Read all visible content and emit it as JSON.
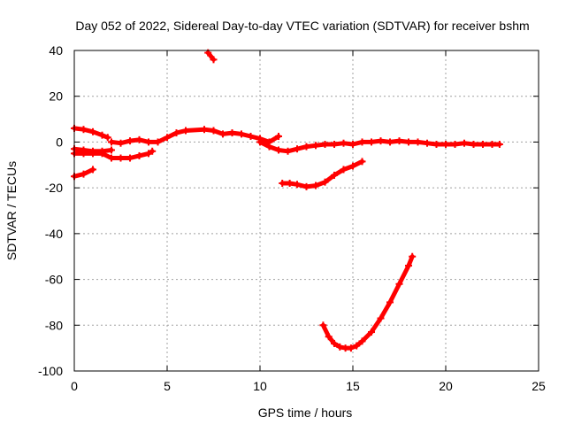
{
  "chart_data": {
    "type": "scatter",
    "title": "Day 052 of 2022, Sidereal Day-to-day VTEC variation (SDTVAR) for receiver bshm",
    "xlabel": "GPS time / hours",
    "ylabel": "SDTVAR / TECUs",
    "xlim": [
      0,
      25
    ],
    "ylim": [
      -100,
      40
    ],
    "xticks": [
      0,
      5,
      10,
      15,
      20,
      25
    ],
    "yticks": [
      -100,
      -80,
      -60,
      -40,
      -20,
      0,
      20,
      40
    ],
    "grid": true,
    "color": "#ff0000",
    "series": [
      {
        "name": "track-1",
        "x": [
          7.2,
          7.5
        ],
        "y": [
          39,
          36
        ]
      },
      {
        "name": "track-2",
        "x": [
          0,
          0.5,
          1.0,
          1.5,
          1.8
        ],
        "y": [
          6,
          5.5,
          4.5,
          3,
          2
        ]
      },
      {
        "name": "track-3",
        "x": [
          2.0,
          2.5,
          3.0,
          3.5,
          4.0,
          4.5,
          5.0,
          5.5,
          6.0,
          7.0,
          7.5,
          8.0,
          8.5,
          9.0,
          9.5,
          10.0,
          10.5,
          11.0
        ],
        "y": [
          0,
          -0.5,
          0.5,
          1,
          0,
          0,
          2,
          4,
          5,
          5.5,
          5,
          3.5,
          4,
          3.5,
          2.5,
          1.5,
          0,
          2.5
        ]
      },
      {
        "name": "track-4",
        "x": [
          10.0,
          10.5,
          11.0,
          11.5,
          12.0,
          12.5,
          13.0,
          13.5,
          14.0,
          14.5,
          15.0,
          15.5,
          16.0,
          16.5,
          17.0,
          17.5,
          18.0,
          18.5,
          19.0,
          19.5,
          20.0,
          20.5,
          21.0,
          21.5,
          22.0,
          22.5,
          22.9
        ],
        "y": [
          0,
          -2,
          -3.5,
          -4,
          -3,
          -2,
          -1.5,
          -1,
          -1,
          -0.5,
          -1,
          0,
          0,
          0.5,
          0,
          0.5,
          0,
          0,
          -0.5,
          -1,
          -1,
          -1,
          -0.5,
          -1,
          -1,
          -1,
          -1
        ]
      },
      {
        "name": "track-5",
        "x": [
          0,
          0.5,
          1.0,
          1.5,
          2.0,
          2.5,
          3.0,
          3.5,
          4.0,
          4.2
        ],
        "y": [
          -5,
          -5,
          -5,
          -5,
          -7,
          -7,
          -7,
          -6,
          -5,
          -4
        ]
      },
      {
        "name": "track-6",
        "x": [
          0,
          0.5,
          1.0,
          1.5,
          2.0
        ],
        "y": [
          -3,
          -3.5,
          -4,
          -4,
          -3.5
        ]
      },
      {
        "name": "track-7",
        "x": [
          0,
          0.5,
          1.0
        ],
        "y": [
          -15,
          -14,
          -12
        ]
      },
      {
        "name": "track-8",
        "x": [
          11.2,
          11.6,
          12.0,
          12.5,
          13.0,
          13.5,
          14.0,
          14.5,
          15.0,
          15.5
        ],
        "y": [
          -18,
          -18,
          -18.5,
          -19.5,
          -19,
          -17.5,
          -14.5,
          -12,
          -10.5,
          -8.5
        ]
      },
      {
        "name": "track-9",
        "x": [
          13.4,
          13.7,
          14.0,
          14.3,
          14.6,
          14.9,
          15.2,
          15.5,
          16.0,
          16.5,
          17.0,
          17.5,
          18.0,
          18.2
        ],
        "y": [
          -80,
          -85,
          -88,
          -89.5,
          -90,
          -90,
          -89,
          -87,
          -83,
          -77,
          -70,
          -62,
          -54,
          -50
        ]
      }
    ]
  }
}
